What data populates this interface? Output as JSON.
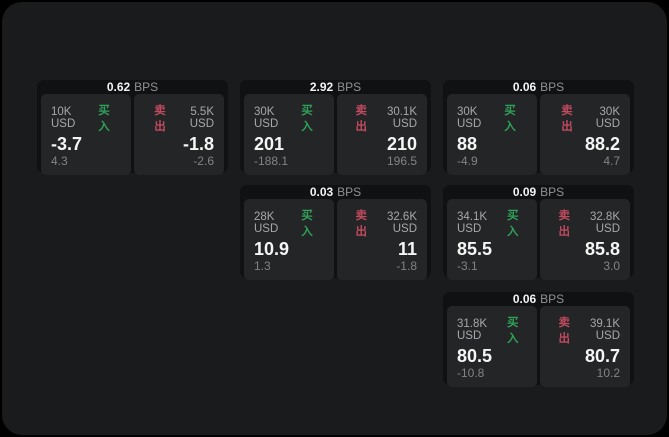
{
  "colors": {
    "background": "#000000",
    "panel": "#1a1b1c",
    "card": "#101112",
    "subcard": "#242527",
    "buy_green": "#2fa158",
    "sell_red": "#c04a5e",
    "value_white": "#f4f5f5",
    "label_gray": "#a5a8aa",
    "dim_gray": "#808385"
  },
  "cards": [
    {
      "bps_value": "0.62",
      "bps_unit": "BPS",
      "buy": {
        "amount": "10K USD",
        "side_label": "买入",
        "value": "-3.7",
        "sub_value": "4.3"
      },
      "sell": {
        "amount": "5.5K USD",
        "side_label": "卖出",
        "value": "-1.8",
        "sub_value": "-2.6"
      }
    },
    {
      "bps_value": "2.92",
      "bps_unit": "BPS",
      "buy": {
        "amount": "30K USD",
        "side_label": "买入",
        "value": "201",
        "sub_value": "-188.1"
      },
      "sell": {
        "amount": "30.1K USD",
        "side_label": "卖出",
        "value": "210",
        "sub_value": "196.5"
      }
    },
    {
      "bps_value": "0.06",
      "bps_unit": "BPS",
      "buy": {
        "amount": "30K USD",
        "side_label": "买入",
        "value": "88",
        "sub_value": "-4.9"
      },
      "sell": {
        "amount": "30K USD",
        "side_label": "卖出",
        "value": "88.2",
        "sub_value": "4.7"
      }
    },
    {
      "bps_value": "0.03",
      "bps_unit": "BPS",
      "buy": {
        "amount": "28K USD",
        "side_label": "买入",
        "value": "10.9",
        "sub_value": "1.3"
      },
      "sell": {
        "amount": "32.6K USD",
        "side_label": "卖出",
        "value": "11",
        "sub_value": "-1.8"
      }
    },
    {
      "bps_value": "0.09",
      "bps_unit": "BPS",
      "buy": {
        "amount": "34.1K USD",
        "side_label": "买入",
        "value": "85.5",
        "sub_value": "-3.1"
      },
      "sell": {
        "amount": "32.8K USD",
        "side_label": "卖出",
        "value": "85.8",
        "sub_value": "3.0"
      }
    },
    {
      "bps_value": "0.06",
      "bps_unit": "BPS",
      "buy": {
        "amount": "31.8K USD",
        "side_label": "买入",
        "value": "80.5",
        "sub_value": "-10.8"
      },
      "sell": {
        "amount": "39.1K USD",
        "side_label": "卖出",
        "value": "80.7",
        "sub_value": "10.2"
      }
    }
  ]
}
